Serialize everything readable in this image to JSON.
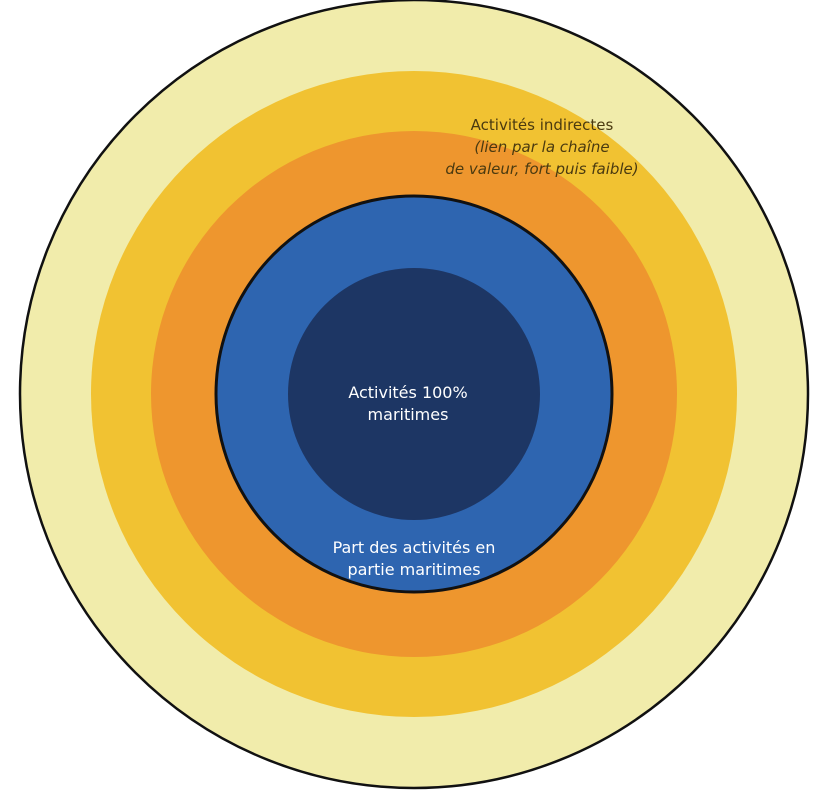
{
  "diagram": {
    "rings": [
      {
        "id": "ring-outer-pale",
        "color": "#f1ecab"
      },
      {
        "id": "ring-yellow",
        "color": "#f1c232"
      },
      {
        "id": "ring-orange",
        "color": "#ee962e"
      },
      {
        "id": "ring-blue",
        "color": "#2e65b0"
      },
      {
        "id": "ring-core",
        "color": "#1d3664"
      }
    ],
    "outline_color": "#111111",
    "labels": {
      "indirect_title": "Activités indirectes",
      "indirect_sub_line1": "(lien par la chaîne",
      "indirect_sub_line2": "de valeur, fort puis faible)",
      "core_line1": "Activités 100%",
      "core_line2": "maritimes",
      "partial_line1": "Part des activités en",
      "partial_line2": "partie maritimes"
    }
  }
}
